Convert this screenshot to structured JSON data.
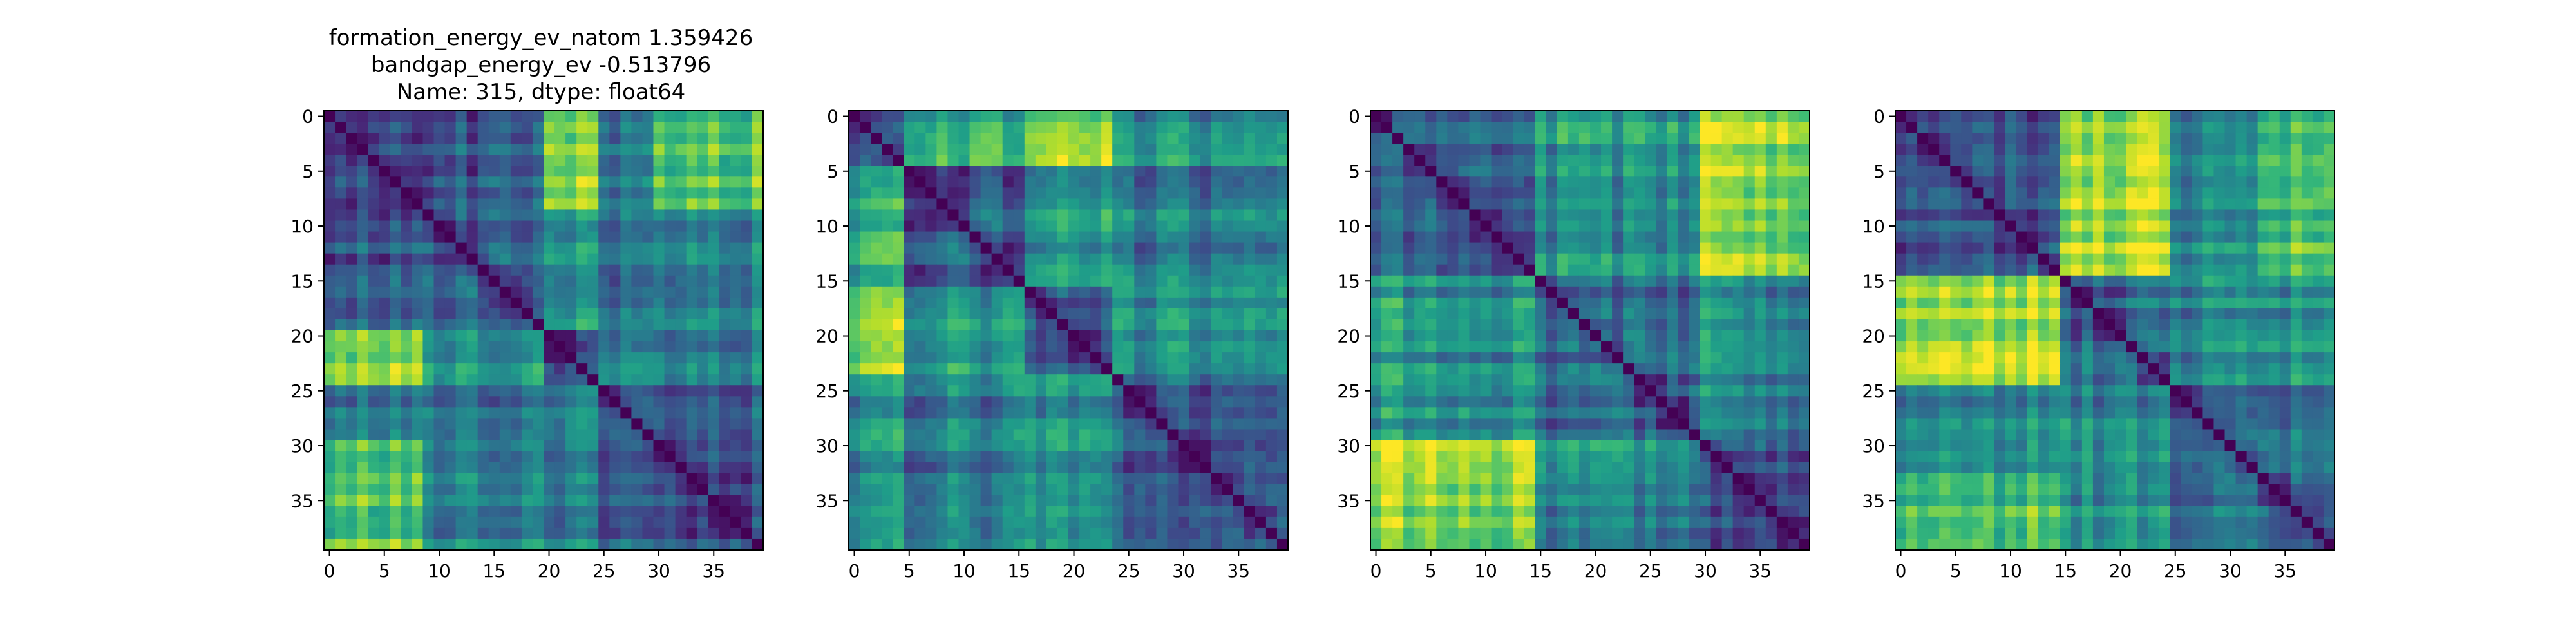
{
  "figure": {
    "title_lines": [
      "formation_energy_ev_natom    1.359426",
      "bandgap_energy_ev           -0.513796",
      "Name: 315, dtype: float64"
    ]
  },
  "colormap": {
    "name": "viridis",
    "stops": [
      "#440154",
      "#482878",
      "#3e4989",
      "#31688e",
      "#26828e",
      "#1f9e89",
      "#35b779",
      "#6ece58",
      "#b5de2b",
      "#fde725"
    ]
  },
  "chart_data": [
    {
      "type": "heatmap",
      "title": "",
      "xlabel": "",
      "ylabel": "",
      "n": 40,
      "x_ticks": [
        0,
        5,
        10,
        15,
        20,
        25,
        30,
        35
      ],
      "y_ticks": [
        0,
        5,
        10,
        15,
        20,
        25,
        30,
        35
      ],
      "diagonal_value": 0,
      "groups": [
        [
          0,
          8
        ],
        [
          9,
          19
        ],
        [
          20,
          24
        ],
        [
          25,
          29
        ],
        [
          30,
          39
        ]
      ],
      "group_similarity": [
        [
          0.3,
          0.3,
          0.88,
          0.4,
          0.78
        ],
        [
          0.3,
          0.3,
          0.55,
          0.35,
          0.48
        ],
        [
          0.88,
          0.55,
          0.3,
          0.42,
          0.45
        ],
        [
          0.4,
          0.35,
          0.42,
          0.3,
          0.3
        ],
        [
          0.78,
          0.48,
          0.45,
          0.3,
          0.25
        ]
      ]
    },
    {
      "type": "heatmap",
      "title": "",
      "xlabel": "",
      "ylabel": "",
      "n": 40,
      "x_ticks": [
        0,
        5,
        10,
        15,
        20,
        25,
        30,
        35
      ],
      "y_ticks": [
        0,
        5,
        10,
        15,
        20,
        25,
        30,
        35
      ],
      "diagonal_value": 0,
      "groups": [
        [
          0,
          4
        ],
        [
          5,
          15
        ],
        [
          16,
          23
        ],
        [
          24,
          39
        ]
      ],
      "group_similarity": [
        [
          0.35,
          0.65,
          0.85,
          0.5
        ],
        [
          0.65,
          0.3,
          0.55,
          0.4
        ],
        [
          0.85,
          0.55,
          0.3,
          0.5
        ],
        [
          0.5,
          0.4,
          0.5,
          0.28
        ]
      ]
    },
    {
      "type": "heatmap",
      "title": "",
      "xlabel": "",
      "ylabel": "",
      "n": 40,
      "x_ticks": [
        0,
        5,
        10,
        15,
        20,
        25,
        30,
        35
      ],
      "y_ticks": [
        0,
        5,
        10,
        15,
        20,
        25,
        30,
        35
      ],
      "diagonal_value": 0,
      "groups": [
        [
          0,
          14
        ],
        [
          15,
          29
        ],
        [
          30,
          39
        ]
      ],
      "group_similarity": [
        [
          0.28,
          0.5,
          0.85
        ],
        [
          0.5,
          0.3,
          0.45
        ],
        [
          0.85,
          0.45,
          0.3
        ]
      ]
    },
    {
      "type": "heatmap",
      "title": "",
      "xlabel": "",
      "ylabel": "",
      "n": 40,
      "x_ticks": [
        0,
        5,
        10,
        15,
        20,
        25,
        30,
        35
      ],
      "y_ticks": [
        0,
        5,
        10,
        15,
        20,
        25,
        30,
        35
      ],
      "diagonal_value": 0,
      "groups": [
        [
          0,
          14
        ],
        [
          15,
          24
        ],
        [
          25,
          32
        ],
        [
          33,
          39
        ]
      ],
      "group_similarity": [
        [
          0.28,
          0.85,
          0.45,
          0.7
        ],
        [
          0.85,
          0.3,
          0.45,
          0.5
        ],
        [
          0.45,
          0.45,
          0.3,
          0.35
        ],
        [
          0.7,
          0.5,
          0.35,
          0.3
        ]
      ]
    }
  ]
}
